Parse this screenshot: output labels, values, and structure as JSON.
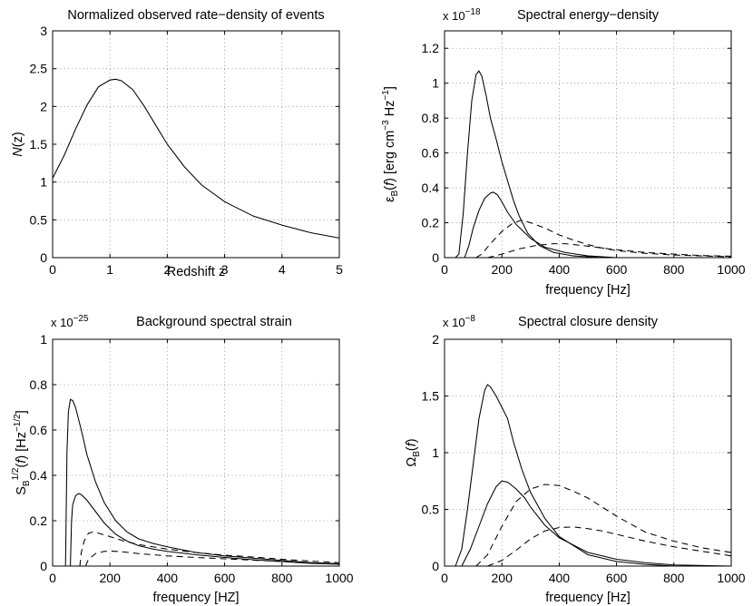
{
  "chart_data": [
    {
      "id": "rate",
      "type": "line",
      "title": "Normalized observed rate−density of events",
      "xlabel": "Redshift z",
      "ylabel": "N(z)",
      "exponent": "",
      "xlim": [
        0,
        5
      ],
      "ylim": [
        0,
        3
      ],
      "xticks": [
        0,
        1,
        2,
        3,
        4,
        5
      ],
      "yticks": [
        0,
        0.5,
        1,
        1.5,
        2,
        2.5,
        3
      ],
      "xtick_labels": [
        "0",
        "1",
        "2",
        "3",
        "4",
        "5"
      ],
      "ytick_labels": [
        "0",
        "0.5",
        "1",
        "1.5",
        "2",
        "2.5",
        "3"
      ],
      "grid": true,
      "series": [
        {
          "name": "N(z)",
          "style": "solid",
          "points": [
            [
              0,
              1.05
            ],
            [
              0.2,
              1.35
            ],
            [
              0.4,
              1.7
            ],
            [
              0.6,
              2.02
            ],
            [
              0.8,
              2.26
            ],
            [
              1.0,
              2.35
            ],
            [
              1.1,
              2.36
            ],
            [
              1.2,
              2.34
            ],
            [
              1.4,
              2.22
            ],
            [
              1.6,
              2.0
            ],
            [
              1.8,
              1.75
            ],
            [
              2.0,
              1.5
            ],
            [
              2.3,
              1.2
            ],
            [
              2.6,
              0.96
            ],
            [
              3.0,
              0.74
            ],
            [
              3.5,
              0.55
            ],
            [
              4.0,
              0.43
            ],
            [
              4.5,
              0.33
            ],
            [
              5.0,
              0.26
            ]
          ]
        }
      ]
    },
    {
      "id": "energy",
      "type": "line",
      "title": "Spectral energy−density",
      "xlabel": "frequency [Hz]",
      "ylabel": "ε′B(f) [erg cm−3 Hz−1]",
      "exponent": "x 10",
      "exponent_power": "−18",
      "xlim": [
        0,
        1000
      ],
      "ylim": [
        0,
        1.3
      ],
      "xticks": [
        0,
        200,
        400,
        600,
        800,
        1000
      ],
      "yticks": [
        0,
        0.2,
        0.4,
        0.6,
        0.8,
        1,
        1.2
      ],
      "xtick_labels": [
        "0",
        "200",
        "400",
        "600",
        "800",
        "1000"
      ],
      "ytick_labels": [
        "0",
        "0.2",
        "0.4",
        "0.6",
        "0.8",
        "1",
        "1.2"
      ],
      "grid": true,
      "series": [
        {
          "name": "solid-high",
          "style": "solid",
          "points": [
            [
              38,
              0
            ],
            [
              50,
              0.02
            ],
            [
              65,
              0.25
            ],
            [
              80,
              0.6
            ],
            [
              95,
              0.9
            ],
            [
              110,
              1.05
            ],
            [
              120,
              1.07
            ],
            [
              130,
              1.04
            ],
            [
              145,
              0.93
            ],
            [
              160,
              0.8
            ],
            [
              180,
              0.68
            ],
            [
              200,
              0.55
            ],
            [
              220,
              0.44
            ],
            [
              240,
              0.33
            ],
            [
              260,
              0.24
            ],
            [
              290,
              0.14
            ],
            [
              330,
              0.07
            ],
            [
              380,
              0.03
            ],
            [
              450,
              0.01
            ],
            [
              550,
              0
            ]
          ]
        },
        {
          "name": "solid-low",
          "style": "solid",
          "points": [
            [
              70,
              0
            ],
            [
              85,
              0.07
            ],
            [
              100,
              0.17
            ],
            [
              120,
              0.27
            ],
            [
              140,
              0.34
            ],
            [
              160,
              0.37
            ],
            [
              170,
              0.375
            ],
            [
              185,
              0.36
            ],
            [
              200,
              0.32
            ],
            [
              220,
              0.26
            ],
            [
              250,
              0.19
            ],
            [
              300,
              0.11
            ],
            [
              350,
              0.06
            ],
            [
              420,
              0.03
            ],
            [
              500,
              0.01
            ],
            [
              600,
              0
            ]
          ]
        },
        {
          "name": "dashed-high",
          "style": "dashed",
          "points": [
            [
              110,
              0
            ],
            [
              130,
              0.02
            ],
            [
              160,
              0.08
            ],
            [
              200,
              0.15
            ],
            [
              240,
              0.2
            ],
            [
              270,
              0.215
            ],
            [
              300,
              0.2
            ],
            [
              350,
              0.17
            ],
            [
              400,
              0.13
            ],
            [
              450,
              0.1
            ],
            [
              500,
              0.075
            ],
            [
              550,
              0.055
            ],
            [
              600,
              0.04
            ],
            [
              700,
              0.025
            ],
            [
              800,
              0.015
            ],
            [
              900,
              0.01
            ],
            [
              1000,
              0.005
            ]
          ]
        },
        {
          "name": "dashed-low",
          "style": "dashed",
          "points": [
            [
              150,
              0
            ],
            [
              200,
              0.02
            ],
            [
              260,
              0.05
            ],
            [
              320,
              0.07
            ],
            [
              380,
              0.08
            ],
            [
              420,
              0.08
            ],
            [
              480,
              0.07
            ],
            [
              550,
              0.055
            ],
            [
              600,
              0.045
            ],
            [
              700,
              0.03
            ],
            [
              800,
              0.02
            ],
            [
              900,
              0.012
            ],
            [
              1000,
              0.008
            ]
          ]
        }
      ]
    },
    {
      "id": "strain",
      "type": "line",
      "title": "Background spectral strain",
      "xlabel": "frequency [HZ]",
      "ylabel": "SB1/2(f) [Hz−1/2]",
      "exponent": "x 10",
      "exponent_power": "−25",
      "xlim": [
        0,
        1000
      ],
      "ylim": [
        0,
        1
      ],
      "xticks": [
        0,
        200,
        400,
        600,
        800,
        1000
      ],
      "yticks": [
        0,
        0.2,
        0.4,
        0.6,
        0.8,
        1
      ],
      "xtick_labels": [
        "0",
        "200",
        "400",
        "600",
        "800",
        "1000"
      ],
      "ytick_labels": [
        "0",
        "0.2",
        "0.4",
        "0.6",
        "0.8",
        "1"
      ],
      "grid": true,
      "series": [
        {
          "name": "solid-high",
          "style": "solid",
          "points": [
            [
              45,
              0
            ],
            [
              50,
              0.5
            ],
            [
              55,
              0.68
            ],
            [
              62,
              0.735
            ],
            [
              70,
              0.73
            ],
            [
              80,
              0.7
            ],
            [
              100,
              0.6
            ],
            [
              120,
              0.49
            ],
            [
              150,
              0.37
            ],
            [
              180,
              0.28
            ],
            [
              220,
              0.2
            ],
            [
              260,
              0.15
            ],
            [
              300,
              0.12
            ],
            [
              350,
              0.1
            ],
            [
              400,
              0.085
            ],
            [
              500,
              0.06
            ],
            [
              600,
              0.045
            ],
            [
              700,
              0.035
            ],
            [
              800,
              0.025
            ],
            [
              900,
              0.015
            ],
            [
              1000,
              0.01
            ]
          ]
        },
        {
          "name": "solid-low",
          "style": "solid",
          "points": [
            [
              62,
              0
            ],
            [
              66,
              0.2
            ],
            [
              70,
              0.27
            ],
            [
              80,
              0.31
            ],
            [
              90,
              0.32
            ],
            [
              100,
              0.315
            ],
            [
              120,
              0.29
            ],
            [
              150,
              0.24
            ],
            [
              180,
              0.19
            ],
            [
              220,
              0.14
            ],
            [
              260,
              0.11
            ],
            [
              300,
              0.09
            ],
            [
              350,
              0.075
            ],
            [
              400,
              0.065
            ],
            [
              500,
              0.05
            ],
            [
              600,
              0.038
            ],
            [
              700,
              0.028
            ],
            [
              800,
              0.02
            ],
            [
              900,
              0.012
            ],
            [
              1000,
              0.008
            ]
          ]
        },
        {
          "name": "dashed-high",
          "style": "dashed",
          "points": [
            [
              95,
              0
            ],
            [
              100,
              0.06
            ],
            [
              110,
              0.11
            ],
            [
              125,
              0.145
            ],
            [
              140,
              0.15
            ],
            [
              160,
              0.145
            ],
            [
              200,
              0.13
            ],
            [
              250,
              0.11
            ],
            [
              300,
              0.095
            ],
            [
              400,
              0.075
            ],
            [
              500,
              0.06
            ],
            [
              600,
              0.048
            ],
            [
              700,
              0.04
            ],
            [
              800,
              0.03
            ],
            [
              900,
              0.022
            ],
            [
              1000,
              0.015
            ]
          ]
        },
        {
          "name": "dashed-low",
          "style": "dashed",
          "points": [
            [
              115,
              0
            ],
            [
              125,
              0.03
            ],
            [
              150,
              0.055
            ],
            [
              180,
              0.065
            ],
            [
              210,
              0.066
            ],
            [
              250,
              0.062
            ],
            [
              300,
              0.055
            ],
            [
              400,
              0.045
            ],
            [
              500,
              0.038
            ],
            [
              600,
              0.032
            ],
            [
              700,
              0.026
            ],
            [
              800,
              0.02
            ],
            [
              900,
              0.015
            ],
            [
              1000,
              0.01
            ]
          ]
        }
      ]
    },
    {
      "id": "closure",
      "type": "line",
      "title": "Spectral closure density",
      "xlabel": "frequency [Hz]",
      "ylabel": "ΩB(f)",
      "exponent": "x 10",
      "exponent_power": "−8",
      "xlim": [
        0,
        1000
      ],
      "ylim": [
        0,
        2
      ],
      "xticks": [
        0,
        200,
        400,
        600,
        800,
        1000
      ],
      "yticks": [
        0,
        0.5,
        1,
        1.5,
        2
      ],
      "xtick_labels": [
        "0",
        "200",
        "400",
        "600",
        "800",
        "1000"
      ],
      "ytick_labels": [
        "0",
        "0.5",
        "1",
        "1.5",
        "2"
      ],
      "grid": true,
      "series": [
        {
          "name": "solid-high",
          "style": "solid",
          "points": [
            [
              38,
              0
            ],
            [
              60,
              0.15
            ],
            [
              80,
              0.5
            ],
            [
              100,
              0.9
            ],
            [
              120,
              1.3
            ],
            [
              140,
              1.55
            ],
            [
              150,
              1.6
            ],
            [
              160,
              1.58
            ],
            [
              180,
              1.5
            ],
            [
              200,
              1.4
            ],
            [
              220,
              1.3
            ],
            [
              240,
              1.1
            ],
            [
              270,
              0.85
            ],
            [
              300,
              0.65
            ],
            [
              350,
              0.42
            ],
            [
              400,
              0.26
            ],
            [
              500,
              0.1
            ],
            [
              600,
              0.04
            ],
            [
              700,
              0.015
            ],
            [
              800,
              0
            ]
          ]
        },
        {
          "name": "solid-low",
          "style": "solid",
          "points": [
            [
              60,
              0
            ],
            [
              90,
              0.15
            ],
            [
              120,
              0.35
            ],
            [
              150,
              0.55
            ],
            [
              180,
              0.7
            ],
            [
              200,
              0.75
            ],
            [
              220,
              0.74
            ],
            [
              250,
              0.68
            ],
            [
              280,
              0.6
            ],
            [
              300,
              0.52
            ],
            [
              350,
              0.36
            ],
            [
              400,
              0.25
            ],
            [
              500,
              0.12
            ],
            [
              600,
              0.06
            ],
            [
              700,
              0.03
            ],
            [
              800,
              0.01
            ],
            [
              900,
              0.005
            ],
            [
              1000,
              0
            ]
          ]
        },
        {
          "name": "dashed-high",
          "style": "dashed",
          "points": [
            [
              110,
              0
            ],
            [
              150,
              0.1
            ],
            [
              200,
              0.35
            ],
            [
              250,
              0.57
            ],
            [
              300,
              0.68
            ],
            [
              350,
              0.72
            ],
            [
              400,
              0.71
            ],
            [
              450,
              0.66
            ],
            [
              500,
              0.6
            ],
            [
              550,
              0.52
            ],
            [
              600,
              0.44
            ],
            [
              650,
              0.37
            ],
            [
              700,
              0.3
            ],
            [
              800,
              0.22
            ],
            [
              900,
              0.16
            ],
            [
              1000,
              0.12
            ]
          ]
        },
        {
          "name": "dashed-low",
          "style": "dashed",
          "points": [
            [
              150,
              0
            ],
            [
              200,
              0.05
            ],
            [
              250,
              0.14
            ],
            [
              300,
              0.24
            ],
            [
              350,
              0.31
            ],
            [
              400,
              0.34
            ],
            [
              450,
              0.345
            ],
            [
              500,
              0.33
            ],
            [
              550,
              0.31
            ],
            [
              600,
              0.28
            ],
            [
              700,
              0.22
            ],
            [
              800,
              0.17
            ],
            [
              900,
              0.13
            ],
            [
              1000,
              0.09
            ]
          ]
        }
      ]
    }
  ]
}
